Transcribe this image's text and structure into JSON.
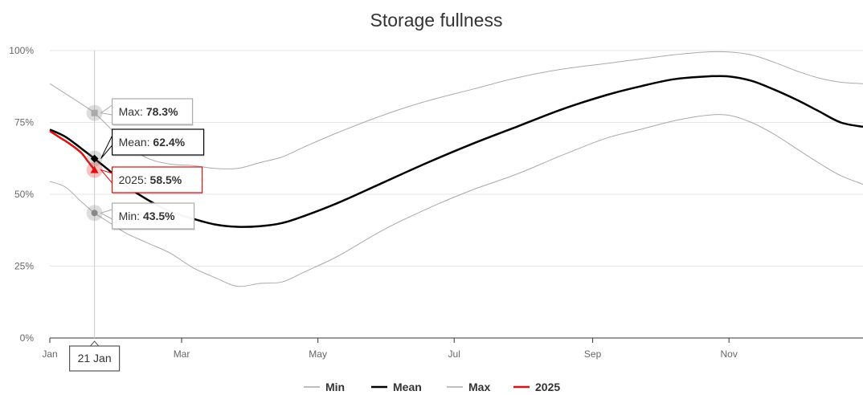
{
  "chart_data": {
    "type": "line",
    "title": "Storage fullness",
    "xlabel": "",
    "ylabel": "",
    "x_tick_labels": [
      "Jan",
      "Mar",
      "May",
      "Jul",
      "Sep",
      "Nov"
    ],
    "y_tick_labels": [
      "0%",
      "25%",
      "50%",
      "75%",
      "100%"
    ],
    "ylim": [
      0,
      100
    ],
    "x_unit": "day of year",
    "x_ticks_day": [
      1,
      60,
      121,
      182,
      244,
      305
    ],
    "grid": true,
    "legend_position": "bottom-center",
    "series": [
      {
        "name": "Min",
        "color": "#aaaaaa",
        "x": [
          1,
          8,
          15,
          21,
          28,
          35,
          45,
          55,
          65,
          75,
          85,
          95,
          105,
          115,
          130,
          150,
          170,
          190,
          210,
          230,
          250,
          265,
          280,
          295,
          305,
          315,
          325,
          335,
          345,
          355,
          365
        ],
        "y": [
          54.5,
          52.5,
          47.5,
          43.5,
          40.0,
          36.5,
          33.0,
          29.5,
          24.5,
          21.0,
          18.0,
          19.0,
          19.5,
          23.0,
          28.5,
          37.5,
          45.0,
          51.5,
          57.0,
          63.5,
          69.5,
          72.5,
          75.5,
          77.5,
          77.5,
          75.0,
          71.0,
          66.0,
          61.0,
          56.5,
          53.5
        ]
      },
      {
        "name": "Mean",
        "color": "#000000",
        "x": [
          1,
          8,
          15,
          21,
          28,
          35,
          45,
          55,
          65,
          75,
          85,
          95,
          105,
          115,
          130,
          150,
          170,
          190,
          210,
          230,
          250,
          265,
          280,
          295,
          305,
          315,
          325,
          335,
          345,
          355,
          365
        ],
        "y": [
          72.5,
          70.0,
          66.0,
          62.4,
          58.0,
          53.0,
          48.0,
          44.0,
          41.5,
          39.5,
          38.7,
          38.9,
          40.0,
          42.5,
          47.0,
          54.0,
          61.0,
          67.5,
          73.5,
          79.5,
          84.5,
          87.5,
          90.0,
          91.0,
          91.0,
          89.5,
          86.5,
          83.0,
          79.0,
          75.0,
          73.5
        ]
      },
      {
        "name": "Max",
        "color": "#aaaaaa",
        "x": [
          1,
          8,
          15,
          21,
          28,
          35,
          45,
          55,
          65,
          75,
          85,
          95,
          105,
          115,
          130,
          150,
          170,
          190,
          210,
          230,
          250,
          265,
          280,
          295,
          305,
          315,
          325,
          335,
          345,
          355,
          365
        ],
        "y": [
          88.5,
          85.0,
          81.5,
          78.3,
          73.0,
          67.5,
          62.5,
          60.5,
          60.0,
          59.0,
          59.0,
          61.0,
          63.0,
          66.5,
          71.5,
          77.5,
          82.5,
          86.5,
          90.5,
          93.5,
          95.5,
          97.0,
          98.5,
          99.5,
          99.5,
          98.5,
          96.0,
          93.0,
          90.5,
          89.0,
          88.5
        ]
      },
      {
        "name": "2025",
        "color": "#dd1111",
        "x": [
          1,
          5,
          10,
          15,
          18,
          21
        ],
        "y": [
          72.0,
          70.0,
          67.5,
          64.5,
          61.5,
          58.5
        ]
      }
    ],
    "tooltip": {
      "date_label": "21 Jan",
      "day": 21,
      "rows": [
        {
          "label": "Max: ",
          "value": "78.3%",
          "series": "Max",
          "y": 78.3
        },
        {
          "label": "Mean: ",
          "value": "62.4%",
          "series": "Mean",
          "y": 62.4
        },
        {
          "label": "2025: ",
          "value": "58.5%",
          "series": "2025",
          "y": 58.5
        },
        {
          "label": "Min: ",
          "value": "43.5%",
          "series": "Min",
          "y": 43.5
        }
      ]
    }
  }
}
